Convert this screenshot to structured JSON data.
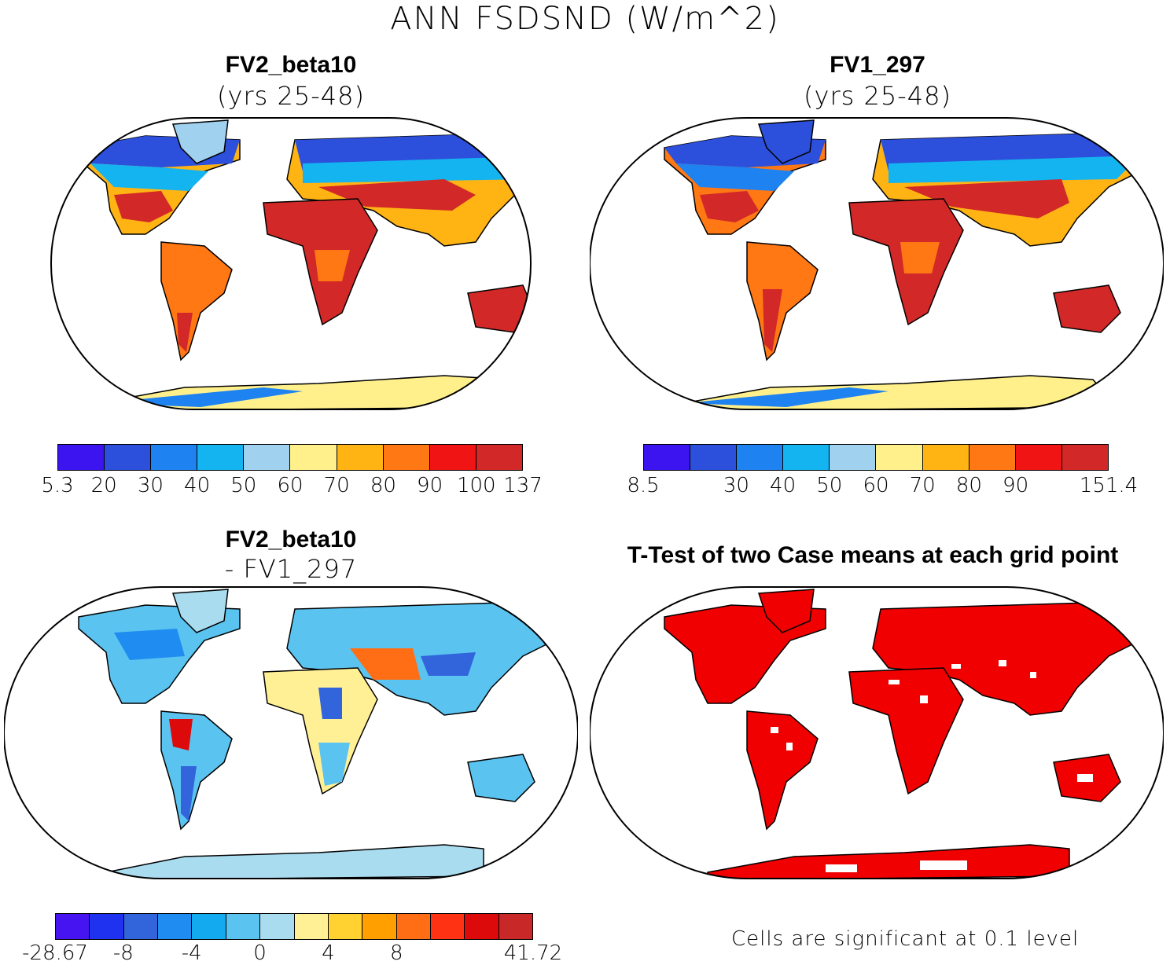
{
  "title": "ANN FSDSND (W/m^2)",
  "panels": {
    "p1": {
      "title": "FV2_beta10",
      "subtitle": "(yrs 25-48)"
    },
    "p2": {
      "title": "FV1_297",
      "subtitle": "(yrs 25-48)"
    },
    "p3": {
      "title": "FV2_beta10",
      "subtitle": "- FV1_297"
    },
    "p4": {
      "title": "T-Test of two Case means at each grid point"
    }
  },
  "colorbars": {
    "c1": {
      "colors": [
        "#3c14f0",
        "#2d50dc",
        "#1e82f0",
        "#14b4f0",
        "#a0d2f0",
        "#fff08c",
        "#ffb414",
        "#ff7814",
        "#f01414",
        "#d22828"
      ],
      "labels": [
        "5.3",
        "20",
        "30",
        "40",
        "50",
        "60",
        "70",
        "80",
        "90",
        "100",
        "137"
      ]
    },
    "c2": {
      "colors": [
        "#3c14f0",
        "#2d50dc",
        "#1e82f0",
        "#14b4f0",
        "#a0d2f0",
        "#fff08c",
        "#ffb414",
        "#ff7814",
        "#f01414",
        "#d22828"
      ],
      "labels": [
        "8.5",
        "",
        "30",
        "40",
        "50",
        "60",
        "70",
        "80",
        "90",
        "",
        "151.4"
      ]
    },
    "c3": {
      "colors": [
        "#4614f0",
        "#1e32f0",
        "#3264dc",
        "#1e8cf0",
        "#14aaf0",
        "#5ac3f0",
        "#aadcf0",
        "#fff096",
        "#ffd232",
        "#ffa000",
        "#ff6e14",
        "#ff3214",
        "#dc0a0a",
        "#c82828"
      ],
      "labels": [
        "-28.67",
        "",
        "-8",
        "",
        "-4",
        "",
        "0",
        "",
        "4",
        "",
        "8",
        "",
        "",
        "",
        "41.72"
      ]
    }
  },
  "ttest_note": "Cells are significant at 0.1 level"
}
